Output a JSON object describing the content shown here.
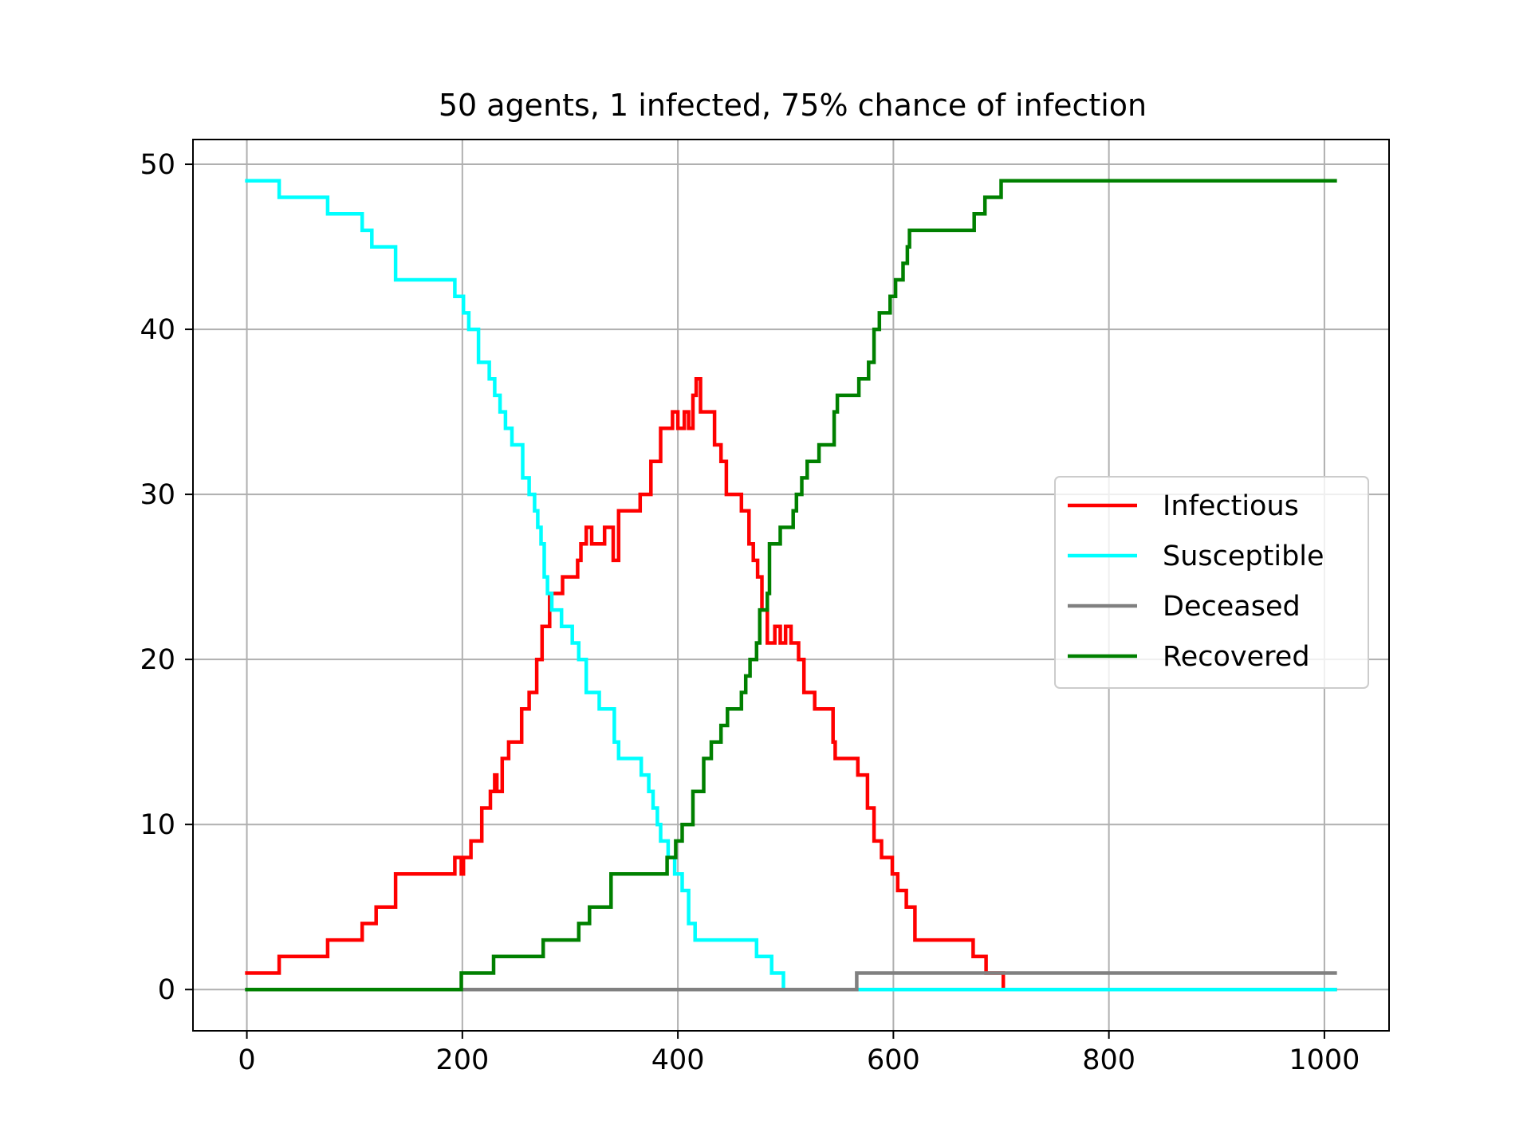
{
  "chart_data": {
    "type": "line",
    "title": "50 agents, 1 infected, 75% chance of infection",
    "xlabel": "",
    "ylabel": "",
    "xlim": [
      -50,
      1060
    ],
    "ylim": [
      -2.5,
      51.5
    ],
    "x_ticks": [
      0,
      200,
      400,
      600,
      800,
      1000
    ],
    "y_ticks": [
      0,
      10,
      20,
      30,
      40,
      50
    ],
    "grid": true,
    "legend_position": "center-right",
    "series": [
      {
        "name": "Infectious",
        "color": "#ff0000",
        "step": true,
        "points": [
          [
            0,
            1
          ],
          [
            30,
            2
          ],
          [
            75,
            3
          ],
          [
            107,
            4
          ],
          [
            120,
            5
          ],
          [
            138,
            7
          ],
          [
            193,
            8
          ],
          [
            199,
            7
          ],
          [
            201,
            8
          ],
          [
            208,
            9
          ],
          [
            218,
            11
          ],
          [
            226,
            12
          ],
          [
            230,
            13
          ],
          [
            232,
            12
          ],
          [
            237,
            14
          ],
          [
            243,
            15
          ],
          [
            255,
            17
          ],
          [
            262,
            18
          ],
          [
            269,
            20
          ],
          [
            274,
            22
          ],
          [
            281,
            24
          ],
          [
            293,
            25
          ],
          [
            307,
            26
          ],
          [
            310,
            27
          ],
          [
            315,
            28
          ],
          [
            320,
            27
          ],
          [
            332,
            28
          ],
          [
            340,
            26
          ],
          [
            345,
            29
          ],
          [
            365,
            30
          ],
          [
            375,
            32
          ],
          [
            384,
            34
          ],
          [
            395,
            35
          ],
          [
            400,
            34
          ],
          [
            406,
            35
          ],
          [
            410,
            34
          ],
          [
            414,
            36
          ],
          [
            417,
            37
          ],
          [
            421,
            35
          ],
          [
            434,
            33
          ],
          [
            440,
            32
          ],
          [
            445,
            30
          ],
          [
            459,
            29
          ],
          [
            466,
            27
          ],
          [
            470,
            26
          ],
          [
            474,
            25
          ],
          [
            478,
            23
          ],
          [
            483,
            21
          ],
          [
            490,
            22
          ],
          [
            495,
            21
          ],
          [
            500,
            22
          ],
          [
            505,
            21
          ],
          [
            512,
            20
          ],
          [
            517,
            18
          ],
          [
            527,
            17
          ],
          [
            544,
            15
          ],
          [
            546,
            14
          ],
          [
            567,
            13
          ],
          [
            576,
            11
          ],
          [
            582,
            9
          ],
          [
            589,
            8
          ],
          [
            599,
            7
          ],
          [
            604,
            6
          ],
          [
            612,
            5
          ],
          [
            620,
            3
          ],
          [
            674,
            2
          ],
          [
            686,
            1
          ],
          [
            702,
            0
          ],
          [
            1010,
            0
          ]
        ]
      },
      {
        "name": "Susceptible",
        "color": "#00ffff",
        "step": true,
        "points": [
          [
            0,
            49
          ],
          [
            30,
            48
          ],
          [
            75,
            47
          ],
          [
            107,
            46
          ],
          [
            116,
            45
          ],
          [
            138,
            43
          ],
          [
            193,
            42
          ],
          [
            201,
            41
          ],
          [
            206,
            40
          ],
          [
            215,
            38
          ],
          [
            225,
            37
          ],
          [
            230,
            36
          ],
          [
            235,
            35
          ],
          [
            240,
            34
          ],
          [
            246,
            33
          ],
          [
            256,
            31
          ],
          [
            262,
            30
          ],
          [
            267,
            29
          ],
          [
            270,
            28
          ],
          [
            273,
            27
          ],
          [
            276,
            25
          ],
          [
            279,
            24
          ],
          [
            283,
            23
          ],
          [
            292,
            22
          ],
          [
            302,
            21
          ],
          [
            308,
            20
          ],
          [
            315,
            18
          ],
          [
            327,
            17
          ],
          [
            341,
            15
          ],
          [
            345,
            14
          ],
          [
            366,
            13
          ],
          [
            373,
            12
          ],
          [
            377,
            11
          ],
          [
            381,
            10
          ],
          [
            384,
            9
          ],
          [
            391,
            8
          ],
          [
            397,
            7
          ],
          [
            404,
            6
          ],
          [
            410,
            4
          ],
          [
            416,
            3
          ],
          [
            473,
            2
          ],
          [
            487,
            1
          ],
          [
            498,
            0
          ],
          [
            1010,
            0
          ]
        ]
      },
      {
        "name": "Deceased",
        "color": "#808080",
        "step": true,
        "points": [
          [
            0,
            0
          ],
          [
            566,
            1
          ],
          [
            1010,
            1
          ]
        ]
      },
      {
        "name": "Recovered",
        "color": "#008000",
        "step": true,
        "points": [
          [
            0,
            0
          ],
          [
            199,
            1
          ],
          [
            229,
            2
          ],
          [
            275,
            3
          ],
          [
            308,
            4
          ],
          [
            318,
            5
          ],
          [
            338,
            7
          ],
          [
            390,
            8
          ],
          [
            398,
            9
          ],
          [
            404,
            10
          ],
          [
            414,
            12
          ],
          [
            424,
            14
          ],
          [
            431,
            15
          ],
          [
            440,
            16
          ],
          [
            446,
            17
          ],
          [
            459,
            18
          ],
          [
            463,
            19
          ],
          [
            467,
            20
          ],
          [
            473,
            21
          ],
          [
            476,
            23
          ],
          [
            483,
            24
          ],
          [
            485,
            27
          ],
          [
            495,
            28
          ],
          [
            507,
            29
          ],
          [
            510,
            30
          ],
          [
            515,
            31
          ],
          [
            520,
            32
          ],
          [
            531,
            33
          ],
          [
            545,
            35
          ],
          [
            548,
            36
          ],
          [
            568,
            37
          ],
          [
            577,
            38
          ],
          [
            582,
            40
          ],
          [
            587,
            41
          ],
          [
            597,
            42
          ],
          [
            602,
            43
          ],
          [
            609,
            44
          ],
          [
            613,
            45
          ],
          [
            615,
            46
          ],
          [
            675,
            47
          ],
          [
            685,
            48
          ],
          [
            700,
            49
          ],
          [
            1010,
            49
          ]
        ]
      }
    ]
  }
}
